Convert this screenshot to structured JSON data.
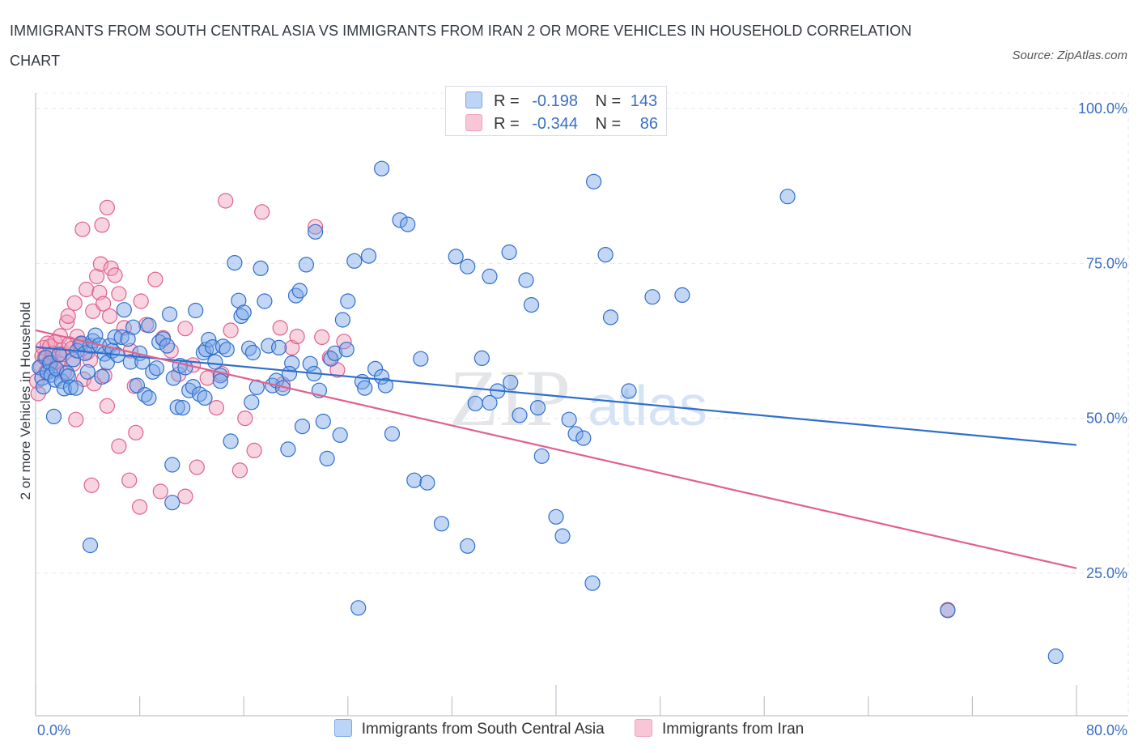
{
  "title": "IMMIGRANTS FROM SOUTH CENTRAL ASIA VS IMMIGRANTS FROM IRAN 2 OR MORE VEHICLES IN HOUSEHOLD CORRELATION CHART",
  "source": "Source: ZipAtlas.com",
  "watermark": {
    "zip": "ZIP",
    "atlas": "atlas"
  },
  "legend": {
    "r_label": "R =",
    "n_label": "N =",
    "series1": {
      "r": "-0.198",
      "n": "143"
    },
    "series2": {
      "r": "-0.344",
      "n": "86"
    }
  },
  "chart_data": {
    "type": "scatter",
    "title": "IMMIGRANTS FROM SOUTH CENTRAL ASIA VS IMMIGRANTS FROM IRAN 2 OR MORE VEHICLES IN HOUSEHOLD CORRELATION CHART",
    "xlabel": "",
    "ylabel": "2 or more Vehicles in Household",
    "xlim": [
      0,
      80
    ],
    "ylim": [
      0,
      100
    ],
    "x_tick_labels": [
      "0.0%",
      "80.0%"
    ],
    "y_ticks": [
      25,
      50,
      75,
      100
    ],
    "y_tick_labels": [
      "25.0%",
      "50.0%",
      "75.0%",
      "100.0%"
    ],
    "grid": true,
    "colors": {
      "series1": "#7aa6e8",
      "series1_line": "#2f6fcc",
      "series2": "#f0a0bc",
      "series2_line": "#e0608c",
      "tick_text": "#3a6fc4"
    },
    "series": [
      {
        "name": "Immigrants from South Central Asia",
        "r": -0.198,
        "n": 143,
        "trend": {
          "x": [
            0,
            80
          ],
          "y": [
            61.5,
            45.7
          ]
        },
        "points": [
          [
            0.3,
            58.2
          ],
          [
            0.5,
            56.5
          ],
          [
            0.6,
            55.1
          ],
          [
            0.8,
            59.8
          ],
          [
            0.9,
            57.4
          ],
          [
            1.1,
            58.9
          ],
          [
            1.2,
            57.0
          ],
          [
            1.4,
            50.3
          ],
          [
            1.5,
            56.2
          ],
          [
            1.6,
            58.0
          ],
          [
            1.8,
            60.3
          ],
          [
            2.0,
            56.0
          ],
          [
            2.2,
            54.8
          ],
          [
            2.4,
            57.3
          ],
          [
            2.5,
            56.8
          ],
          [
            2.7,
            55.0
          ],
          [
            2.9,
            59.5
          ],
          [
            3.1,
            54.9
          ],
          [
            3.2,
            60.9
          ],
          [
            3.5,
            62.1
          ],
          [
            3.8,
            60.5
          ],
          [
            4.0,
            57.5
          ],
          [
            4.2,
            61.7
          ],
          [
            4.4,
            62.5
          ],
          [
            4.6,
            63.4
          ],
          [
            4.9,
            61.8
          ],
          [
            5.1,
            56.7
          ],
          [
            5.3,
            60.4
          ],
          [
            5.5,
            59.0
          ],
          [
            5.7,
            61.7
          ],
          [
            5.9,
            60.9
          ],
          [
            6.1,
            63.1
          ],
          [
            6.3,
            60.2
          ],
          [
            6.6,
            63.1
          ],
          [
            6.8,
            67.5
          ],
          [
            7.1,
            62.8
          ],
          [
            7.3,
            59.1
          ],
          [
            7.5,
            64.7
          ],
          [
            7.8,
            55.3
          ],
          [
            8.0,
            60.5
          ],
          [
            8.2,
            59.1
          ],
          [
            8.4,
            53.8
          ],
          [
            8.7,
            65.0
          ],
          [
            9.0,
            57.5
          ],
          [
            9.3,
            58.1
          ],
          [
            9.5,
            62.3
          ],
          [
            9.8,
            62.8
          ],
          [
            10.1,
            61.7
          ],
          [
            10.3,
            66.8
          ],
          [
            10.6,
            56.5
          ],
          [
            10.9,
            51.8
          ],
          [
            11.1,
            58.5
          ],
          [
            11.3,
            51.7
          ],
          [
            11.5,
            58.2
          ],
          [
            11.8,
            54.5
          ],
          [
            12.1,
            55.1
          ],
          [
            12.3,
            67.4
          ],
          [
            12.6,
            53.9
          ],
          [
            12.9,
            60.6
          ],
          [
            13.1,
            61.1
          ],
          [
            13.3,
            62.7
          ],
          [
            13.6,
            61.5
          ],
          [
            13.8,
            59.1
          ],
          [
            14.2,
            56.9
          ],
          [
            14.4,
            61.6
          ],
          [
            14.7,
            61.1
          ],
          [
            15.0,
            46.3
          ],
          [
            15.3,
            75.1
          ],
          [
            15.6,
            69.0
          ],
          [
            15.8,
            66.5
          ],
          [
            16.0,
            67.1
          ],
          [
            16.4,
            61.3
          ],
          [
            16.7,
            60.6
          ],
          [
            17.0,
            55.0
          ],
          [
            17.3,
            74.2
          ],
          [
            17.6,
            68.9
          ],
          [
            17.9,
            61.7
          ],
          [
            18.2,
            55.3
          ],
          [
            18.5,
            56.1
          ],
          [
            19.0,
            54.9
          ],
          [
            19.4,
            45.0
          ],
          [
            19.7,
            58.9
          ],
          [
            20.0,
            69.8
          ],
          [
            20.3,
            70.6
          ],
          [
            20.5,
            48.7
          ],
          [
            20.8,
            74.8
          ],
          [
            21.1,
            58.8
          ],
          [
            21.4,
            57.2
          ],
          [
            21.8,
            54.5
          ],
          [
            22.1,
            49.5
          ],
          [
            22.4,
            43.5
          ],
          [
            22.7,
            59.6
          ],
          [
            23.0,
            60.5
          ],
          [
            23.4,
            47.3
          ],
          [
            23.6,
            65.9
          ],
          [
            24.0,
            68.9
          ],
          [
            24.5,
            75.4
          ],
          [
            25.1,
            55.9
          ],
          [
            25.3,
            54.9
          ],
          [
            25.6,
            76.2
          ],
          [
            26.1,
            58.0
          ],
          [
            26.6,
            56.7
          ],
          [
            26.9,
            55.3
          ],
          [
            27.4,
            47.5
          ],
          [
            28.0,
            82.0
          ],
          [
            28.6,
            81.3
          ],
          [
            29.1,
            40.0
          ],
          [
            29.6,
            59.6
          ],
          [
            30.1,
            39.6
          ],
          [
            32.3,
            76.1
          ],
          [
            33.2,
            74.5
          ],
          [
            33.8,
            52.4
          ],
          [
            34.3,
            59.7
          ],
          [
            34.9,
            72.9
          ],
          [
            35.5,
            54.4
          ],
          [
            34.9,
            52.5
          ],
          [
            36.4,
            76.8
          ],
          [
            37.7,
            72.3
          ],
          [
            38.1,
            68.3
          ],
          [
            38.9,
            43.9
          ],
          [
            40.0,
            34.1
          ],
          [
            40.5,
            31.0
          ],
          [
            41.0,
            49.8
          ],
          [
            41.5,
            47.5
          ],
          [
            42.1,
            46.8
          ],
          [
            42.9,
            88.2
          ],
          [
            43.8,
            76.4
          ],
          [
            44.2,
            66.3
          ],
          [
            45.6,
            54.4
          ],
          [
            47.4,
            69.6
          ],
          [
            49.7,
            69.9
          ],
          [
            57.8,
            85.8
          ],
          [
            78.4,
            11.6
          ],
          [
            70.1,
            19.0
          ],
          [
            36.5,
            55.8
          ],
          [
            38.6,
            51.7
          ],
          [
            24.8,
            19.4
          ],
          [
            31.2,
            33.0
          ],
          [
            33.2,
            29.4
          ],
          [
            42.8,
            23.4
          ],
          [
            26.6,
            90.3
          ],
          [
            21.5,
            80.1
          ],
          [
            4.2,
            29.5
          ],
          [
            14.2,
            56.0
          ],
          [
            10.5,
            36.4
          ],
          [
            10.5,
            42.5
          ],
          [
            16.6,
            52.6
          ],
          [
            18.7,
            61.4
          ],
          [
            8.7,
            53.3
          ],
          [
            13.0,
            53.3
          ],
          [
            23.9,
            61.1
          ],
          [
            19.5,
            57.2
          ],
          [
            37.2,
            50.5
          ]
        ]
      },
      {
        "name": "Immigrants from Iran",
        "r": -0.344,
        "n": 86,
        "trend": {
          "x": [
            0,
            80
          ],
          "y": [
            64.2,
            25.8
          ]
        },
        "points": [
          [
            0.1,
            56.0
          ],
          [
            0.2,
            54.0
          ],
          [
            0.4,
            58.3
          ],
          [
            0.5,
            60.1
          ],
          [
            0.6,
            61.4
          ],
          [
            0.7,
            59.8
          ],
          [
            0.8,
            57.5
          ],
          [
            0.9,
            62.1
          ],
          [
            1.0,
            59.0
          ],
          [
            1.1,
            61.6
          ],
          [
            1.2,
            58.9
          ],
          [
            1.3,
            60.5
          ],
          [
            1.5,
            62.3
          ],
          [
            1.6,
            57.8
          ],
          [
            1.7,
            59.1
          ],
          [
            1.9,
            63.3
          ],
          [
            2.0,
            61.0
          ],
          [
            2.1,
            60.3
          ],
          [
            2.2,
            57.4
          ],
          [
            2.4,
            65.5
          ],
          [
            2.5,
            66.5
          ],
          [
            2.6,
            62.0
          ],
          [
            2.8,
            61.3
          ],
          [
            2.9,
            58.8
          ],
          [
            3.0,
            68.6
          ],
          [
            3.2,
            63.2
          ],
          [
            3.4,
            61.9
          ],
          [
            3.6,
            62.0
          ],
          [
            3.7,
            56.3
          ],
          [
            3.9,
            70.8
          ],
          [
            4.0,
            60.7
          ],
          [
            4.2,
            59.4
          ],
          [
            4.4,
            67.3
          ],
          [
            4.5,
            55.6
          ],
          [
            4.7,
            72.9
          ],
          [
            4.9,
            70.3
          ],
          [
            5.0,
            74.9
          ],
          [
            5.2,
            68.5
          ],
          [
            5.3,
            56.9
          ],
          [
            5.5,
            52.0
          ],
          [
            5.7,
            66.5
          ],
          [
            5.8,
            74.2
          ],
          [
            6.1,
            73.1
          ],
          [
            6.4,
            70.1
          ],
          [
            6.8,
            64.6
          ],
          [
            7.3,
            60.9
          ],
          [
            7.6,
            55.2
          ],
          [
            8.1,
            68.9
          ],
          [
            8.5,
            65.1
          ],
          [
            9.2,
            72.4
          ],
          [
            9.8,
            63.0
          ],
          [
            10.4,
            60.9
          ],
          [
            11.0,
            57.1
          ],
          [
            11.5,
            64.5
          ],
          [
            12.1,
            58.6
          ],
          [
            12.4,
            42.1
          ],
          [
            13.2,
            56.5
          ],
          [
            13.9,
            51.7
          ],
          [
            14.3,
            57.2
          ],
          [
            15.0,
            64.2
          ],
          [
            15.7,
            41.6
          ],
          [
            16.1,
            50.0
          ],
          [
            16.8,
            44.8
          ],
          [
            17.4,
            83.3
          ],
          [
            18.8,
            64.6
          ],
          [
            19.0,
            55.5
          ],
          [
            19.7,
            61.4
          ],
          [
            20.1,
            63.2
          ],
          [
            21.5,
            80.9
          ],
          [
            22.0,
            63.1
          ],
          [
            22.6,
            59.8
          ],
          [
            23.2,
            57.8
          ],
          [
            23.7,
            62.4
          ],
          [
            3.1,
            49.8
          ],
          [
            4.3,
            39.2
          ],
          [
            7.2,
            40.0
          ],
          [
            7.7,
            47.7
          ],
          [
            8.0,
            35.7
          ],
          [
            9.6,
            38.2
          ],
          [
            11.5,
            37.4
          ],
          [
            6.4,
            45.5
          ],
          [
            3.6,
            80.5
          ],
          [
            5.1,
            81.2
          ],
          [
            5.5,
            84.0
          ],
          [
            14.6,
            85.1
          ],
          [
            70.1,
            19.1
          ]
        ]
      }
    ]
  },
  "bottom_legend": {
    "series1": "Immigrants from South Central Asia",
    "series2": "Immigrants from Iran"
  }
}
